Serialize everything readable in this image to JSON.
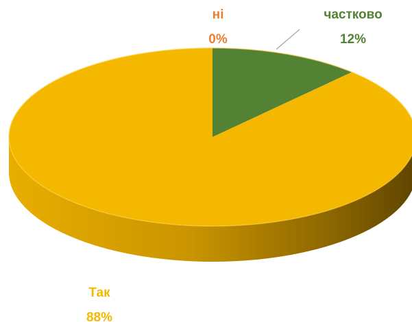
{
  "chart_data": {
    "type": "pie3d",
    "categories": [
      "ні",
      "частково",
      "Так"
    ],
    "values": [
      0,
      12,
      88
    ],
    "value_labels": [
      "0%",
      "12%",
      "88%"
    ],
    "colors": [
      "#ED7D31",
      "#548235",
      "#F5B800"
    ]
  }
}
